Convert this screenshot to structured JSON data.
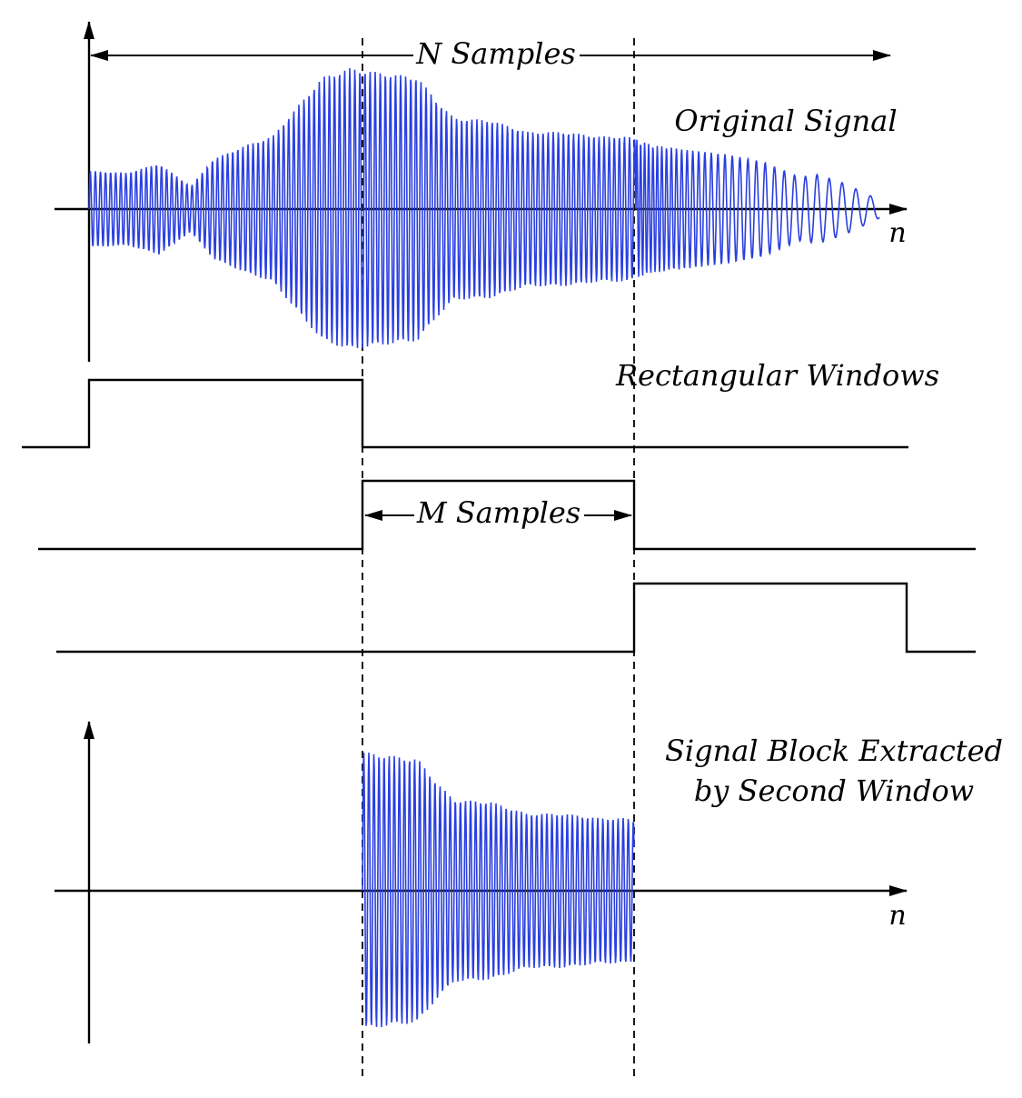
{
  "labels": {
    "n_samples": "N Samples",
    "m_samples": "M Samples",
    "original_signal": "Original Signal",
    "rectangular_windows": "Rectangular Windows",
    "extracted_line1": "Signal Block Extracted",
    "extracted_line2": "by Second Window",
    "axis_top": "n",
    "axis_bottom": "n"
  },
  "colors": {
    "signal": "#2a3fe0",
    "lines": "#000000"
  }
}
